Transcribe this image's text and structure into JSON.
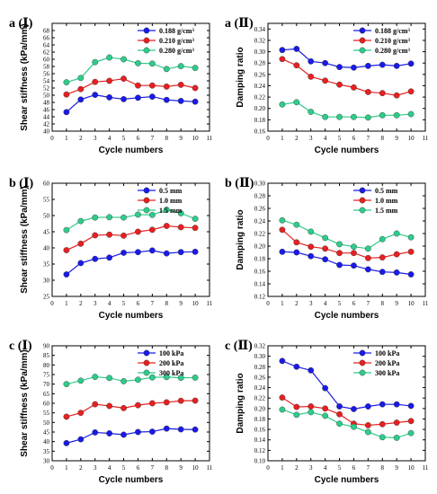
{
  "chart_data": [
    {
      "type": "line",
      "panel_label": "a (Ⅰ)",
      "xlabel": "Cycle numbers",
      "ylabel": "Shear stiffness (kPa/mm)",
      "xlim": [
        0,
        11
      ],
      "ylim": [
        40,
        70
      ],
      "xticks": [
        0,
        1,
        2,
        3,
        4,
        5,
        6,
        7,
        8,
        9,
        10,
        11
      ],
      "yticks": [
        40,
        42,
        44,
        46,
        48,
        50,
        52,
        54,
        56,
        58,
        60,
        62,
        64,
        66,
        68
      ],
      "legend_position": "top-right",
      "x": [
        1,
        2,
        3,
        4,
        5,
        6,
        7,
        8,
        9,
        10
      ],
      "series": [
        {
          "name": "0.188 g/cm³",
          "color": "#1a1ae6",
          "values": [
            45.3,
            48.8,
            50.1,
            49.4,
            48.9,
            49.3,
            49.6,
            48.7,
            48.4,
            48.2
          ]
        },
        {
          "name": "0.210 g/cm³",
          "color": "#e62020",
          "values": [
            50.2,
            51.7,
            53.7,
            54.0,
            54.6,
            52.7,
            52.7,
            52.4,
            52.9,
            52.0
          ]
        },
        {
          "name": "0.280 g/cm³",
          "color": "#2ecc8a",
          "values": [
            53.6,
            54.8,
            59.2,
            60.5,
            60.0,
            58.9,
            58.8,
            57.3,
            58.1,
            57.6
          ]
        }
      ]
    },
    {
      "type": "line",
      "panel_label": "a (Ⅱ)",
      "xlabel": "Cycle numbers",
      "ylabel": "Damping ratio",
      "xlim": [
        0,
        11
      ],
      "ylim": [
        0.16,
        0.35
      ],
      "xticks": [
        0,
        1,
        2,
        3,
        4,
        5,
        6,
        7,
        8,
        9,
        10,
        11
      ],
      "yticks": [
        "0.16",
        "0.18",
        "0.20",
        "0.22",
        "0.24",
        "0.26",
        "0.28",
        "0.30",
        "0.32",
        "0.34"
      ],
      "legend_position": "top-right",
      "x": [
        1,
        2,
        3,
        4,
        5,
        6,
        7,
        8,
        9,
        10
      ],
      "series": [
        {
          "name": "0.188 g/cm³",
          "color": "#1a1ae6",
          "values": [
            0.303,
            0.305,
            0.283,
            0.28,
            0.273,
            0.272,
            0.275,
            0.277,
            0.275,
            0.279
          ]
        },
        {
          "name": "0.210 g/cm³",
          "color": "#e62020",
          "values": [
            0.287,
            0.276,
            0.256,
            0.249,
            0.242,
            0.237,
            0.229,
            0.227,
            0.223,
            0.23
          ]
        },
        {
          "name": "0.280 g/cm³",
          "color": "#2ecc8a",
          "values": [
            0.207,
            0.211,
            0.194,
            0.185,
            0.185,
            0.185,
            0.184,
            0.188,
            0.188,
            0.19
          ]
        }
      ]
    },
    {
      "type": "line",
      "panel_label": "b (Ⅰ)",
      "xlabel": "Cycle numbers",
      "ylabel": "Shear stiffness (kPa/mm)",
      "xlim": [
        0,
        11
      ],
      "ylim": [
        25,
        60
      ],
      "xticks": [
        0,
        1,
        2,
        3,
        4,
        5,
        6,
        7,
        8,
        9,
        10,
        11
      ],
      "yticks": [
        25,
        30,
        35,
        40,
        45,
        50,
        55,
        60
      ],
      "legend_position": "top-right",
      "x": [
        1,
        2,
        3,
        4,
        5,
        6,
        7,
        8,
        9,
        10
      ],
      "series": [
        {
          "name": "0.5 mm",
          "color": "#1a1ae6",
          "values": [
            31.8,
            35.3,
            36.6,
            37.0,
            38.5,
            38.7,
            39.2,
            38.3,
            38.7,
            38.8
          ]
        },
        {
          "name": "1.0 mm",
          "color": "#e62020",
          "values": [
            39.3,
            41.3,
            43.9,
            44.1,
            43.8,
            45.0,
            45.6,
            46.8,
            46.4,
            46.2
          ]
        },
        {
          "name": "1.5 mm",
          "color": "#2ecc8a",
          "values": [
            45.5,
            48.3,
            49.4,
            49.5,
            49.4,
            50.3,
            50.2,
            51.8,
            50.7,
            49.0
          ]
        }
      ]
    },
    {
      "type": "line",
      "panel_label": "b (Ⅱ)",
      "xlabel": "Cycle numbers",
      "ylabel": "Damping ratio",
      "xlim": [
        0,
        11
      ],
      "ylim": [
        0.12,
        0.3
      ],
      "xticks": [
        0,
        1,
        2,
        3,
        4,
        5,
        6,
        7,
        8,
        9,
        10,
        11
      ],
      "yticks": [
        "0.12",
        "0.14",
        "0.16",
        "0.18",
        "0.20",
        "0.22",
        "0.24",
        "0.26",
        "0.28",
        "0.30"
      ],
      "legend_position": "top-right",
      "x": [
        1,
        2,
        3,
        4,
        5,
        6,
        7,
        8,
        9,
        10
      ],
      "series": [
        {
          "name": "0.5 mm",
          "color": "#1a1ae6",
          "values": [
            0.191,
            0.19,
            0.184,
            0.179,
            0.17,
            0.169,
            0.163,
            0.159,
            0.158,
            0.155
          ]
        },
        {
          "name": "1.0 mm",
          "color": "#e62020",
          "values": [
            0.226,
            0.206,
            0.199,
            0.196,
            0.189,
            0.189,
            0.181,
            0.182,
            0.187,
            0.191
          ]
        },
        {
          "name": "1.5 mm",
          "color": "#2ecc8a",
          "values": [
            0.241,
            0.234,
            0.223,
            0.213,
            0.203,
            0.199,
            0.196,
            0.211,
            0.22,
            0.214
          ]
        }
      ]
    },
    {
      "type": "line",
      "panel_label": "c (Ⅰ)",
      "xlabel": "Cycle numbers",
      "ylabel": "Shear stiffness (kPa/mm)",
      "xlim": [
        0,
        11
      ],
      "ylim": [
        30,
        90
      ],
      "xticks": [
        0,
        1,
        2,
        3,
        4,
        5,
        6,
        7,
        8,
        9,
        10,
        11
      ],
      "yticks": [
        30,
        35,
        40,
        45,
        50,
        55,
        60,
        65,
        70,
        75,
        80,
        85,
        90
      ],
      "legend_position": "top-right",
      "x": [
        1,
        2,
        3,
        4,
        5,
        6,
        7,
        8,
        9,
        10
      ],
      "series": [
        {
          "name": "100 kPa",
          "color": "#1a1ae6",
          "values": [
            39.2,
            41.2,
            44.8,
            44.3,
            43.6,
            45.0,
            45.2,
            46.8,
            46.4,
            46.3
          ]
        },
        {
          "name": "200 kPa",
          "color": "#e62020",
          "values": [
            53.0,
            55.0,
            59.5,
            58.6,
            57.5,
            59.0,
            60.0,
            60.5,
            61.3,
            61.4
          ]
        },
        {
          "name": "300 kPa",
          "color": "#2ecc8a",
          "values": [
            70.0,
            71.8,
            73.8,
            73.2,
            71.5,
            72.3,
            73.5,
            73.7,
            73.3,
            73.4
          ]
        }
      ]
    },
    {
      "type": "line",
      "panel_label": "c (Ⅱ)",
      "xlabel": "Cycle numbers",
      "ylabel": "Damping ratio",
      "xlim": [
        0,
        11
      ],
      "ylim": [
        0.1,
        0.32
      ],
      "xticks": [
        0,
        1,
        2,
        3,
        4,
        5,
        6,
        7,
        8,
        9,
        10,
        11
      ],
      "yticks": [
        "0.10",
        "0.12",
        "0.14",
        "0.16",
        "0.18",
        "0.20",
        "0.22",
        "0.24",
        "0.26",
        "0.28",
        "0.30",
        "0.32"
      ],
      "legend_position": "top-right",
      "x": [
        1,
        2,
        3,
        4,
        5,
        6,
        7,
        8,
        9,
        10
      ],
      "series": [
        {
          "name": "100 kPa",
          "color": "#1a1ae6",
          "values": [
            0.291,
            0.28,
            0.273,
            0.239,
            0.204,
            0.199,
            0.204,
            0.208,
            0.208,
            0.205
          ]
        },
        {
          "name": "200 kPa",
          "color": "#e62020",
          "values": [
            0.221,
            0.203,
            0.204,
            0.2,
            0.189,
            0.171,
            0.168,
            0.17,
            0.173,
            0.176
          ]
        },
        {
          "name": "300 kPa",
          "color": "#2ecc8a",
          "values": [
            0.198,
            0.188,
            0.193,
            0.186,
            0.171,
            0.165,
            0.155,
            0.145,
            0.144,
            0.153
          ]
        }
      ]
    }
  ]
}
